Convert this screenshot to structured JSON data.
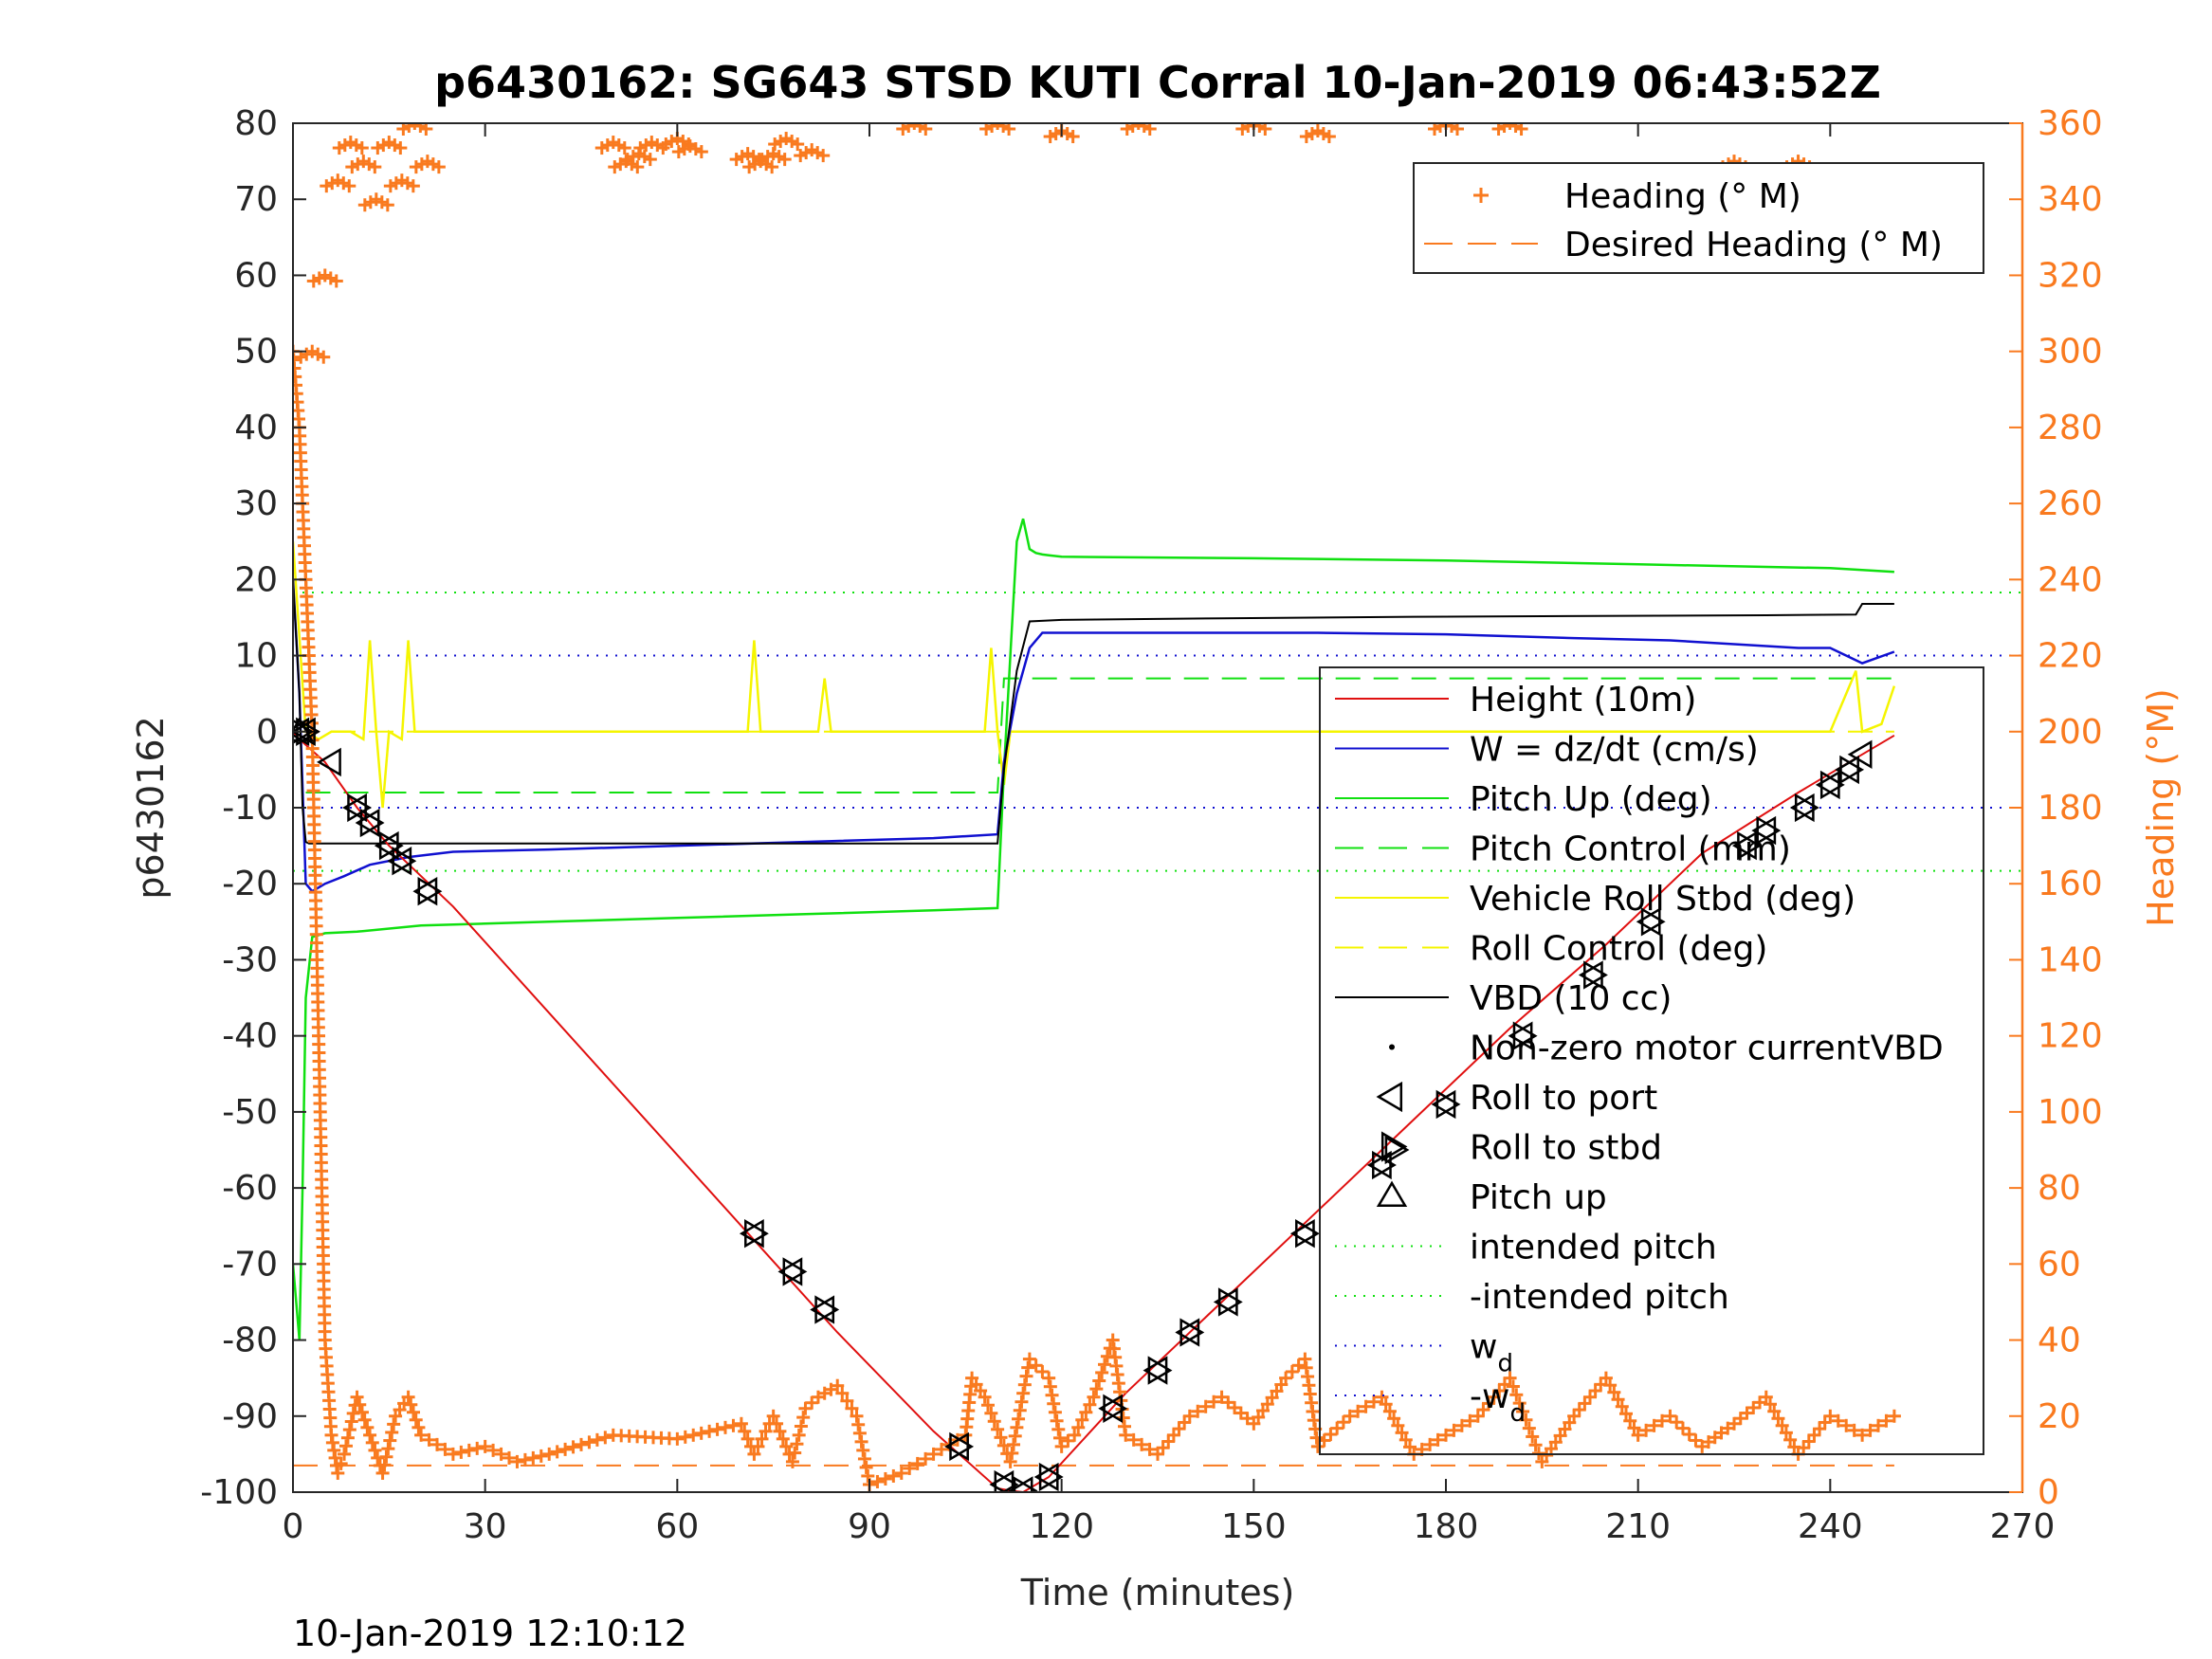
{
  "chart_data": {
    "type": "line",
    "title": "p6430162: SG643 STSD KUTI Corral 10-Jan-2019 06:43:52Z",
    "xlabel": "Time (minutes)",
    "ylabel_left": "p6430162",
    "ylabel_right": "Heading (°M)",
    "footer": "10-Jan-2019 12:10:12",
    "xlim": [
      0,
      270
    ],
    "ylim_left": [
      -100,
      80
    ],
    "ylim_right": [
      0,
      360
    ],
    "xticks": [
      0,
      30,
      60,
      90,
      120,
      150,
      180,
      210,
      240,
      270
    ],
    "yticks_left": [
      -100,
      -90,
      -80,
      -70,
      -60,
      -50,
      -40,
      -30,
      -20,
      -10,
      0,
      10,
      20,
      30,
      40,
      50,
      60,
      70,
      80
    ],
    "yticks_right": [
      0,
      20,
      40,
      60,
      80,
      100,
      120,
      140,
      160,
      180,
      200,
      220,
      240,
      260,
      280,
      300,
      320,
      340,
      360
    ],
    "grid": false,
    "colors": {
      "heading": "#f97a1f",
      "height": "#e01010",
      "w": "#1010d0",
      "pitch": "#10e010",
      "roll": "#f5f500",
      "vbd": "#000000",
      "right_axis": "#f97a1f"
    },
    "legend_top": {
      "placement": "top-right",
      "entries": [
        {
          "label": "Heading (° M)",
          "style": "plus",
          "color": "#f97a1f"
        },
        {
          "label": "Desired Heading (° M)",
          "style": "dashed",
          "color": "#f97a1f"
        }
      ]
    },
    "legend_main": {
      "placement": "right",
      "entries": [
        {
          "label": "Height (10m)",
          "style": "solid",
          "color": "#e01010"
        },
        {
          "label": "W = dz/dt (cm/s)",
          "style": "solid",
          "color": "#1010d0"
        },
        {
          "label": "Pitch Up (deg)",
          "style": "solid",
          "color": "#10e010"
        },
        {
          "label": "Pitch Control (mm)",
          "style": "dashed",
          "color": "#10e010"
        },
        {
          "label": "Vehicle Roll Stbd (deg)",
          "style": "solid",
          "color": "#f5f500"
        },
        {
          "label": "Roll Control (deg)",
          "style": "dashed",
          "color": "#f5f500"
        },
        {
          "label": "VBD (10 cc)",
          "style": "solid",
          "color": "#000000"
        },
        {
          "label": "Non-zero motor currentVBD",
          "style": "dot",
          "color": "#000000"
        },
        {
          "label": "Roll to port",
          "style": "tri-left",
          "color": "#000000"
        },
        {
          "label": "Roll to stbd",
          "style": "tri-right",
          "color": "#000000"
        },
        {
          "label": "Pitch up",
          "style": "tri-up",
          "color": "#000000"
        },
        {
          "label": "intended pitch",
          "style": "dotted",
          "color": "#10e010"
        },
        {
          "label": "-intended pitch",
          "style": "dotted",
          "color": "#10e010"
        },
        {
          "label": "w",
          "sub": "d",
          "style": "dotted",
          "color": "#1010d0"
        },
        {
          "label": "-w",
          "sub": "d",
          "style": "dotted",
          "color": "#1010d0"
        }
      ]
    },
    "constant_lines": [
      {
        "name": "intended pitch",
        "y": 18.3,
        "color": "#10e010",
        "style": "dotted"
      },
      {
        "name": "-intended pitch",
        "y": -18.3,
        "color": "#10e010",
        "style": "dotted"
      },
      {
        "name": "w_d",
        "y": 10,
        "color": "#1010d0",
        "style": "dotted"
      },
      {
        "name": "-w_d",
        "y": -10,
        "color": "#1010d0",
        "style": "dotted"
      }
    ],
    "series": {
      "height": {
        "x": [
          0,
          1,
          5,
          10,
          15,
          20,
          25,
          40,
          55,
          70,
          85,
          100,
          110,
          112,
          114,
          118,
          130,
          145,
          160,
          175,
          190,
          205,
          220,
          235,
          245,
          250
        ],
        "y": [
          0,
          -1,
          -4,
          -10,
          -15,
          -19,
          -23,
          -37,
          -51,
          -65,
          -79,
          -92,
          -99.5,
          -99.8,
          -100,
          -98,
          -87,
          -75,
          -63,
          -51,
          -39,
          -28,
          -16,
          -8,
          -3,
          -0.5
        ]
      },
      "w": {
        "x": [
          0,
          1,
          2,
          3,
          5,
          8,
          12,
          18,
          25,
          40,
          60,
          80,
          100,
          110,
          111,
          113,
          115,
          117,
          120,
          140,
          160,
          180,
          200,
          215,
          225,
          235,
          240,
          245,
          250
        ],
        "y": [
          20,
          5,
          -20,
          -21,
          -20,
          -19,
          -17.5,
          -16.5,
          -15.8,
          -15.5,
          -15,
          -14.5,
          -14,
          -13.5,
          -4,
          5,
          11,
          13,
          13,
          13,
          13,
          12.8,
          12.3,
          12,
          11.5,
          11,
          11,
          9,
          10.5
        ]
      },
      "pitch_up": {
        "x": [
          0,
          1,
          1.5,
          2,
          3,
          5,
          10,
          20,
          40,
          60,
          80,
          100,
          110,
          111,
          112,
          113,
          114,
          115,
          116,
          117,
          118,
          120,
          150,
          180,
          210,
          240,
          250
        ],
        "y": [
          -70,
          -80,
          -60,
          -35,
          -27,
          -26.5,
          -26.3,
          -25.5,
          -25,
          -24.5,
          -24,
          -23.5,
          -23.2,
          -5,
          10,
          25,
          28,
          24,
          23.5,
          23.3,
          23.2,
          23,
          22.8,
          22.5,
          22,
          21.5,
          21
        ]
      },
      "pitch_control": {
        "x": [
          2,
          110,
          111,
          250
        ],
        "y": [
          -8,
          -8,
          7,
          7
        ]
      },
      "vbd": {
        "x": [
          0,
          1,
          1.5,
          2,
          2.5,
          110,
          111,
          113,
          115,
          120,
          145,
          175,
          230,
          244,
          245,
          250
        ],
        "y": [
          20,
          5,
          -10,
          -14.5,
          -14.7,
          -14.7,
          -5,
          8,
          14.5,
          14.7,
          14.9,
          15.1,
          15.3,
          15.4,
          16.8,
          16.8
        ]
      },
      "roll_control": {
        "x": [
          0,
          250
        ],
        "y": [
          0,
          0
        ]
      },
      "roll": {
        "x": [
          0,
          2,
          4,
          6,
          9,
          11,
          12,
          13,
          14,
          15,
          17,
          18,
          19,
          20,
          30,
          50,
          71,
          72,
          73,
          75,
          82,
          83,
          84,
          86,
          108,
          109,
          110,
          111,
          112,
          114,
          130,
          150,
          170,
          190,
          210,
          230,
          240,
          244,
          245,
          248,
          250
        ],
        "y": [
          25,
          0,
          -1,
          0,
          0,
          -1,
          12,
          0,
          -10,
          0,
          -1,
          12,
          0,
          0,
          0,
          0,
          0,
          12,
          0,
          0,
          0,
          7,
          0,
          0,
          0,
          11,
          0,
          -7,
          0,
          0,
          0,
          0,
          0,
          0,
          0,
          0,
          0,
          8,
          0,
          1,
          6
        ]
      },
      "heading": {
        "x": [
          0,
          1,
          2,
          3,
          4,
          5,
          6,
          7,
          8,
          10,
          12,
          14,
          16,
          18,
          20,
          25,
          30,
          35,
          40,
          50,
          60,
          70,
          72,
          75,
          78,
          80,
          82,
          85,
          88,
          90,
          95,
          100,
          105,
          106,
          108,
          112,
          115,
          118,
          120,
          122,
          125,
          128,
          130,
          135,
          140,
          145,
          150,
          155,
          158,
          160,
          165,
          170,
          175,
          180,
          185,
          190,
          195,
          200,
          205,
          210,
          215,
          220,
          225,
          230,
          235,
          240,
          245,
          250
        ],
        "y": [
          300,
          280,
          240,
          200,
          120,
          40,
          15,
          5,
          10,
          25,
          15,
          5,
          20,
          25,
          15,
          10,
          12,
          8,
          10,
          15,
          14,
          18,
          10,
          20,
          8,
          22,
          25,
          28,
          20,
          2,
          5,
          10,
          15,
          30,
          25,
          8,
          35,
          30,
          12,
          15,
          25,
          40,
          15,
          10,
          20,
          25,
          18,
          30,
          35,
          12,
          20,
          25,
          10,
          15,
          20,
          30,
          8,
          20,
          30,
          15,
          20,
          12,
          18,
          25,
          10,
          20,
          15,
          20
        ]
      },
      "desired_heading": {
        "x": [
          0,
          250
        ],
        "y": [
          7,
          7
        ]
      },
      "heading_top": {
        "x": [
          3,
          5,
          7,
          9,
          11,
          13,
          15,
          17,
          19,
          21,
          50,
          52,
          54,
          56,
          60,
          62,
          71,
          73,
          75,
          77,
          81,
          97,
          110,
          120,
          132,
          150,
          160,
          180,
          190,
          225,
          230,
          235,
          240,
          245
        ],
        "y": [
          300,
          320,
          345,
          355,
          350,
          340,
          355,
          345,
          360,
          350,
          355,
          350,
          352,
          355,
          356,
          354,
          352,
          350,
          352,
          356,
          353,
          360,
          360,
          358,
          360,
          360,
          358,
          360,
          360,
          350,
          345,
          350,
          345,
          340
        ]
      }
    },
    "markers": {
      "tri_left": {
        "x": [
          1,
          2,
          6,
          10,
          12,
          15,
          17,
          21,
          72,
          78,
          83,
          104,
          111,
          114,
          118,
          128,
          135,
          140,
          146,
          158,
          170,
          180,
          192,
          203,
          212,
          227,
          230,
          236,
          240,
          243,
          245
        ],
        "y": [
          0,
          0,
          -4,
          -10,
          -12,
          -15,
          -17,
          -21,
          -66,
          -71,
          -76,
          -94,
          -99,
          -99.8,
          -98,
          -89,
          -84,
          -79,
          -75,
          -66,
          -57,
          -49,
          -40,
          -32,
          -25,
          -15,
          -13,
          -10,
          -7,
          -5,
          -3
        ]
      },
      "tri_right": {
        "x": [
          1,
          2,
          10,
          12,
          15,
          17,
          21,
          72,
          78,
          83,
          104,
          111,
          114,
          118,
          128,
          135,
          140,
          146,
          158,
          170,
          172,
          180,
          192,
          203,
          212,
          227,
          230,
          236,
          240,
          243
        ],
        "y": [
          0,
          0,
          -10,
          -12,
          -15,
          -17,
          -21,
          -66,
          -71,
          -76,
          -94,
          -99,
          -99.8,
          -98,
          -89,
          -84,
          -79,
          -75,
          -66,
          -57,
          -55,
          -49,
          -40,
          -32,
          -25,
          -15,
          -13,
          -10,
          -7,
          -5
        ]
      },
      "tri_up": {
        "x": [
          1
        ],
        "y": [
          0
        ]
      }
    }
  }
}
